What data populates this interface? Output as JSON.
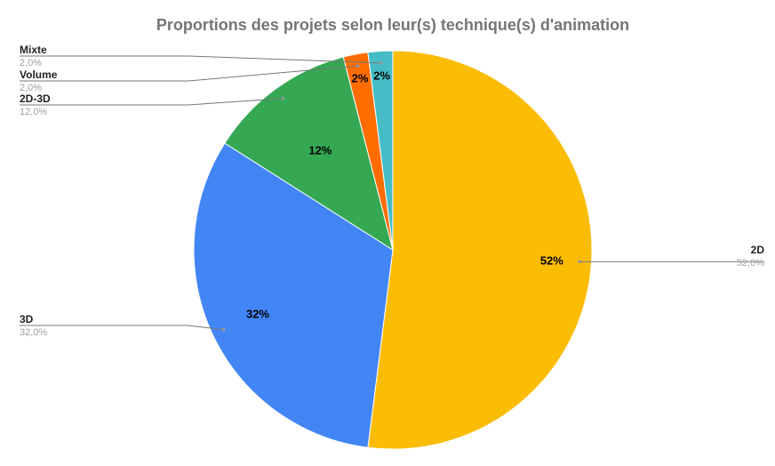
{
  "chart_data": {
    "type": "pie",
    "title": "Proportions des projets selon leur(s) technique(s) d'animation",
    "slices": [
      {
        "name": "2D",
        "value": 52,
        "percent_label": "52%",
        "value_label": "52,0%",
        "color": "#fbbc04"
      },
      {
        "name": "3D",
        "value": 32,
        "percent_label": "32%",
        "value_label": "32,0%",
        "color": "#4285f4"
      },
      {
        "name": "2D-3D",
        "value": 12,
        "percent_label": "12%",
        "value_label": "12,0%",
        "color": "#34a853"
      },
      {
        "name": "Volume",
        "value": 2,
        "percent_label": "2%",
        "value_label": "2,0%",
        "color": "#ff6d01"
      },
      {
        "name": "Mixte",
        "value": 2,
        "percent_label": "2%",
        "value_label": "2,0%",
        "color": "#46bdc6"
      }
    ],
    "legend": "callout-labels"
  }
}
